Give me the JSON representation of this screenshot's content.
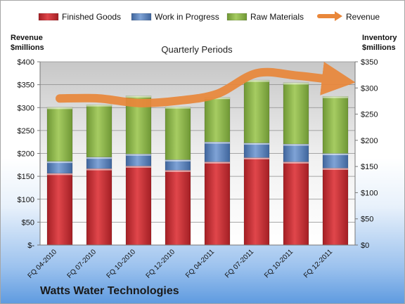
{
  "chart_data": {
    "type": "bar",
    "subtitle": "Quarterly Periods",
    "left_axis_label": [
      "Revenue",
      "$millions"
    ],
    "right_axis_label": [
      "Inventory",
      "$millions"
    ],
    "company": "Watts Water Technologies",
    "categories": [
      "FQ 04-2010",
      "FQ 07-2010",
      "FQ 10-2010",
      "FQ 12-2010",
      "FQ 04-2011",
      "FQ 07-2011",
      "FQ 10-2011",
      "FQ 12-2011"
    ],
    "left_ticks": [
      "$-",
      "$50",
      "$100",
      "$150",
      "$200",
      "$250",
      "$300",
      "$350",
      "$400"
    ],
    "right_ticks": [
      "$0",
      "$50",
      "$100",
      "$150",
      "$200",
      "$250",
      "$300",
      "$350"
    ],
    "left_axis_range": [
      0,
      400
    ],
    "right_axis_range": [
      0,
      350
    ],
    "legend_position": "top",
    "gridlines": true,
    "inventory_series": [
      {
        "name": "Finished Goods",
        "color": "#c0272d",
        "values": [
          137,
          146,
          151,
          143,
          159,
          167,
          159,
          147
        ]
      },
      {
        "name": "Work in Progress",
        "color": "#4f79b4",
        "values": [
          23,
          22,
          23,
          20,
          38,
          28,
          34,
          28
        ]
      },
      {
        "name": "Raw Materials",
        "color": "#8bb445",
        "values": [
          103,
          100,
          111,
          101,
          85,
          120,
          117,
          109
        ]
      }
    ],
    "revenue_series": {
      "name": "Revenue",
      "color": "#e9873a",
      "values": [
        320,
        320,
        310,
        315,
        330,
        375,
        370,
        360
      ]
    }
  }
}
